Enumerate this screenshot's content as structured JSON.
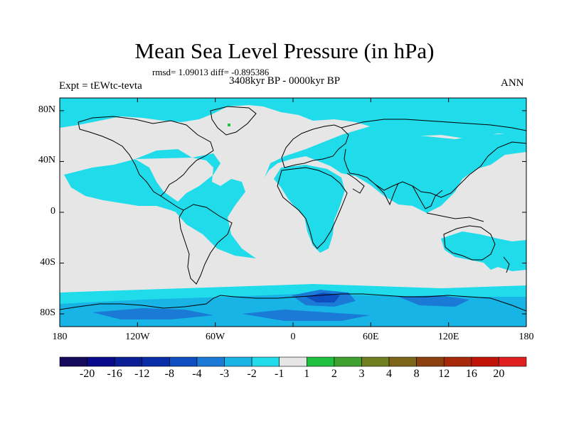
{
  "title": "Mean Sea Level Pressure (in hPa)",
  "stats_line": "rmsd= 1.09013 diff= -0.895386",
  "period": "3408kyr BP - 0000kyr BP",
  "experiment": "Expt = tEWtc-tevta",
  "season": "ANN",
  "map": {
    "projection": "cylindrical equidistant",
    "lat_range": [
      -90,
      90
    ],
    "lon_range": [
      -180,
      180
    ],
    "lat_ticks": [
      {
        "value": 80,
        "label": "80N"
      },
      {
        "value": 40,
        "label": "40N"
      },
      {
        "value": 0,
        "label": "0"
      },
      {
        "value": -40,
        "label": "40S"
      },
      {
        "value": -80,
        "label": "80S"
      }
    ],
    "lon_ticks": [
      {
        "value": -180,
        "label": "180"
      },
      {
        "value": -120,
        "label": "120W"
      },
      {
        "value": -60,
        "label": "60W"
      },
      {
        "value": 0,
        "label": "0"
      },
      {
        "value": 60,
        "label": "60E"
      },
      {
        "value": 120,
        "label": "120E"
      },
      {
        "value": 180,
        "label": "180"
      }
    ],
    "background_color": "#e6e6e6",
    "coastline_color": "#000000"
  },
  "colorbar": {
    "colors": [
      "#160a5c",
      "#0a0a8c",
      "#0a1e96",
      "#0a2ea8",
      "#0f4ec0",
      "#1a7ad6",
      "#18b4e6",
      "#20dceb",
      "#e6e6e6",
      "#20c040",
      "#40a030",
      "#708020",
      "#7c6418",
      "#8c4010",
      "#a62a0a",
      "#c01408",
      "#e02020"
    ],
    "labels": [
      "-20",
      "-16",
      "-12",
      "-8",
      "-4",
      "-3",
      "-2",
      "-1",
      "1",
      "2",
      "3",
      "4",
      "8",
      "12",
      "16",
      "20"
    ]
  }
}
